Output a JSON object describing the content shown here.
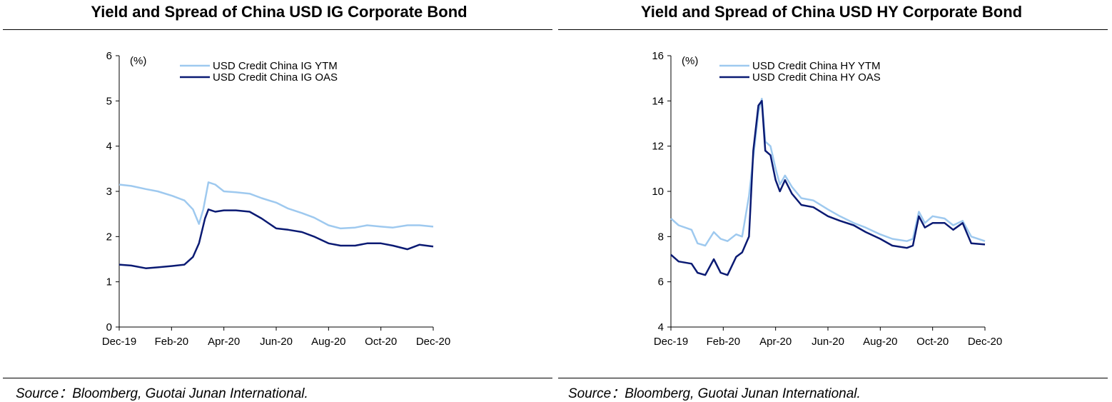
{
  "panels": [
    {
      "title": "Yield and Spread of China USD IG Corporate Bond",
      "source": "Source：Bloomberg, Guotai Junan International."
    },
    {
      "title": "Yield and Spread of China USD HY Corporate Bond",
      "source": "Source：Bloomberg, Guotai Junan International."
    }
  ],
  "chart_data": [
    {
      "type": "line",
      "title": "Yield and Spread of China USD IG Corporate Bond",
      "unit_label": "(%)",
      "xlabel": "",
      "ylabel": "",
      "x_tick_labels": [
        "Dec-19",
        "Feb-20",
        "Apr-20",
        "Jun-20",
        "Aug-20",
        "Oct-20",
        "Dec-20"
      ],
      "x_range": [
        "2019-12-01",
        "2020-12-01"
      ],
      "ylim": [
        0,
        6
      ],
      "y_ticks": [
        0,
        1,
        2,
        3,
        4,
        5,
        6
      ],
      "grid": false,
      "legend_position": "top-center",
      "series": [
        {
          "name": "USD Credit China IG YTM",
          "color": "#9ec9ef",
          "points": [
            [
              "2019-12-01",
              3.15
            ],
            [
              "2019-12-15",
              3.12
            ],
            [
              "2020-01-01",
              3.05
            ],
            [
              "2020-01-15",
              3.0
            ],
            [
              "2020-02-01",
              2.9
            ],
            [
              "2020-02-15",
              2.8
            ],
            [
              "2020-02-25",
              2.6
            ],
            [
              "2020-03-03",
              2.28
            ],
            [
              "2020-03-08",
              2.6
            ],
            [
              "2020-03-14",
              3.2
            ],
            [
              "2020-03-22",
              3.15
            ],
            [
              "2020-04-01",
              3.0
            ],
            [
              "2020-04-15",
              2.98
            ],
            [
              "2020-05-01",
              2.95
            ],
            [
              "2020-05-15",
              2.85
            ],
            [
              "2020-06-01",
              2.75
            ],
            [
              "2020-06-15",
              2.62
            ],
            [
              "2020-07-01",
              2.52
            ],
            [
              "2020-07-15",
              2.42
            ],
            [
              "2020-08-01",
              2.25
            ],
            [
              "2020-08-15",
              2.18
            ],
            [
              "2020-09-01",
              2.2
            ],
            [
              "2020-09-15",
              2.25
            ],
            [
              "2020-10-01",
              2.22
            ],
            [
              "2020-10-15",
              2.2
            ],
            [
              "2020-11-01",
              2.25
            ],
            [
              "2020-11-15",
              2.25
            ],
            [
              "2020-12-01",
              2.22
            ]
          ]
        },
        {
          "name": "USD Credit China IG OAS",
          "color": "#0a1a73",
          "points": [
            [
              "2019-12-01",
              1.38
            ],
            [
              "2019-12-15",
              1.36
            ],
            [
              "2020-01-01",
              1.3
            ],
            [
              "2020-01-15",
              1.32
            ],
            [
              "2020-02-01",
              1.35
            ],
            [
              "2020-02-15",
              1.38
            ],
            [
              "2020-02-25",
              1.55
            ],
            [
              "2020-03-03",
              1.85
            ],
            [
              "2020-03-10",
              2.4
            ],
            [
              "2020-03-14",
              2.6
            ],
            [
              "2020-03-22",
              2.55
            ],
            [
              "2020-04-01",
              2.58
            ],
            [
              "2020-04-15",
              2.58
            ],
            [
              "2020-05-01",
              2.55
            ],
            [
              "2020-05-15",
              2.4
            ],
            [
              "2020-06-01",
              2.18
            ],
            [
              "2020-06-15",
              2.15
            ],
            [
              "2020-07-01",
              2.1
            ],
            [
              "2020-07-15",
              2.0
            ],
            [
              "2020-08-01",
              1.85
            ],
            [
              "2020-08-15",
              1.8
            ],
            [
              "2020-09-01",
              1.8
            ],
            [
              "2020-09-15",
              1.85
            ],
            [
              "2020-10-01",
              1.85
            ],
            [
              "2020-10-15",
              1.8
            ],
            [
              "2020-11-01",
              1.72
            ],
            [
              "2020-11-15",
              1.82
            ],
            [
              "2020-12-01",
              1.78
            ]
          ]
        }
      ]
    },
    {
      "type": "line",
      "title": "Yield and Spread of China USD HY Corporate Bond",
      "unit_label": "(%)",
      "xlabel": "",
      "ylabel": "",
      "x_tick_labels": [
        "Dec-19",
        "Feb-20",
        "Apr-20",
        "Jun-20",
        "Aug-20",
        "Oct-20",
        "Dec-20"
      ],
      "x_range": [
        "2019-12-01",
        "2020-12-01"
      ],
      "ylim": [
        4,
        16
      ],
      "y_ticks": [
        4,
        6,
        8,
        10,
        12,
        14,
        16
      ],
      "grid": false,
      "legend_position": "top-center",
      "series": [
        {
          "name": "USD Credit China HY YTM",
          "color": "#9ec9ef",
          "points": [
            [
              "2019-12-01",
              8.8
            ],
            [
              "2019-12-10",
              8.5
            ],
            [
              "2019-12-25",
              8.3
            ],
            [
              "2020-01-01",
              7.7
            ],
            [
              "2020-01-10",
              7.6
            ],
            [
              "2020-01-20",
              8.2
            ],
            [
              "2020-01-28",
              7.9
            ],
            [
              "2020-02-05",
              7.8
            ],
            [
              "2020-02-15",
              8.1
            ],
            [
              "2020-02-22",
              8.0
            ],
            [
              "2020-03-01",
              9.8
            ],
            [
              "2020-03-06",
              11.5
            ],
            [
              "2020-03-12",
              13.5
            ],
            [
              "2020-03-16",
              14.1
            ],
            [
              "2020-03-20",
              12.2
            ],
            [
              "2020-03-26",
              12.0
            ],
            [
              "2020-04-01",
              11.0
            ],
            [
              "2020-04-06",
              10.3
            ],
            [
              "2020-04-12",
              10.7
            ],
            [
              "2020-04-20",
              10.2
            ],
            [
              "2020-05-01",
              9.7
            ],
            [
              "2020-05-15",
              9.6
            ],
            [
              "2020-06-01",
              9.2
            ],
            [
              "2020-06-15",
              8.9
            ],
            [
              "2020-07-01",
              8.6
            ],
            [
              "2020-07-15",
              8.4
            ],
            [
              "2020-08-01",
              8.1
            ],
            [
              "2020-08-15",
              7.9
            ],
            [
              "2020-09-01",
              7.8
            ],
            [
              "2020-09-08",
              7.9
            ],
            [
              "2020-09-15",
              9.1
            ],
            [
              "2020-09-22",
              8.6
            ],
            [
              "2020-10-01",
              8.9
            ],
            [
              "2020-10-15",
              8.8
            ],
            [
              "2020-10-25",
              8.5
            ],
            [
              "2020-11-05",
              8.7
            ],
            [
              "2020-11-15",
              8.0
            ],
            [
              "2020-12-01",
              7.8
            ]
          ]
        },
        {
          "name": "USD Credit China HY OAS",
          "color": "#0a1a73",
          "points": [
            [
              "2019-12-01",
              7.2
            ],
            [
              "2019-12-10",
              6.9
            ],
            [
              "2019-12-25",
              6.8
            ],
            [
              "2020-01-01",
              6.4
            ],
            [
              "2020-01-10",
              6.3
            ],
            [
              "2020-01-20",
              7.0
            ],
            [
              "2020-01-28",
              6.4
            ],
            [
              "2020-02-05",
              6.3
            ],
            [
              "2020-02-15",
              7.1
            ],
            [
              "2020-02-22",
              7.3
            ],
            [
              "2020-03-01",
              8.0
            ],
            [
              "2020-03-06",
              11.8
            ],
            [
              "2020-03-12",
              13.8
            ],
            [
              "2020-03-16",
              14.0
            ],
            [
              "2020-03-20",
              11.8
            ],
            [
              "2020-03-26",
              11.6
            ],
            [
              "2020-04-01",
              10.5
            ],
            [
              "2020-04-06",
              10.0
            ],
            [
              "2020-04-12",
              10.5
            ],
            [
              "2020-04-20",
              9.9
            ],
            [
              "2020-05-01",
              9.4
            ],
            [
              "2020-05-15",
              9.3
            ],
            [
              "2020-06-01",
              8.9
            ],
            [
              "2020-06-15",
              8.7
            ],
            [
              "2020-07-01",
              8.5
            ],
            [
              "2020-07-15",
              8.2
            ],
            [
              "2020-08-01",
              7.9
            ],
            [
              "2020-08-15",
              7.6
            ],
            [
              "2020-09-01",
              7.5
            ],
            [
              "2020-09-08",
              7.6
            ],
            [
              "2020-09-15",
              8.9
            ],
            [
              "2020-09-22",
              8.4
            ],
            [
              "2020-10-01",
              8.6
            ],
            [
              "2020-10-15",
              8.6
            ],
            [
              "2020-10-25",
              8.3
            ],
            [
              "2020-11-05",
              8.6
            ],
            [
              "2020-11-15",
              7.7
            ],
            [
              "2020-12-01",
              7.65
            ]
          ]
        }
      ]
    }
  ]
}
